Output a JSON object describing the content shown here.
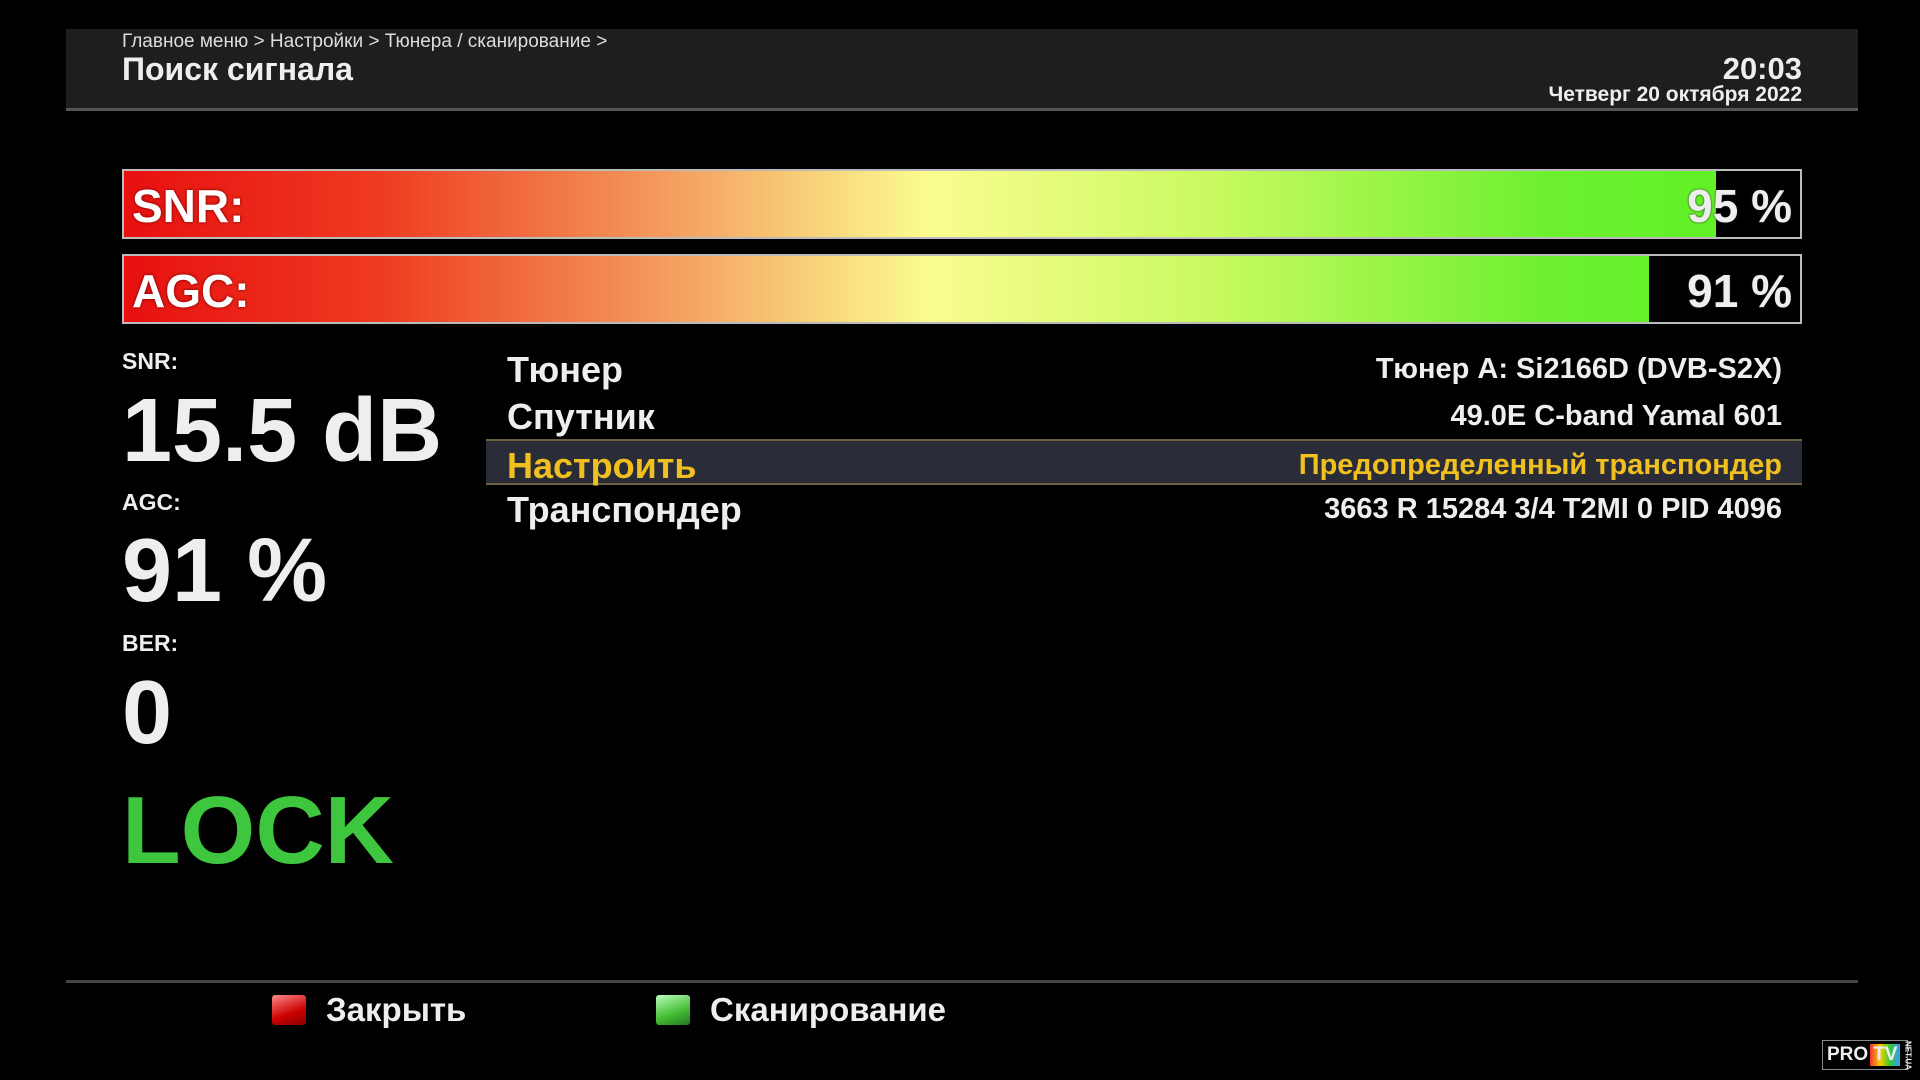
{
  "header": {
    "breadcrumb": "Главное меню > Настройки > Тюнера / сканирование >",
    "title": "Поиск сигнала",
    "time": "20:03",
    "date": "Четверг 20 октября 2022"
  },
  "bars": [
    {
      "label": "SNR:",
      "value": "95 %",
      "percent": 95
    },
    {
      "label": "AGC:",
      "value": "91 %",
      "percent": 91
    }
  ],
  "stats": {
    "snr_label": "SNR:",
    "snr_value": "15.5 dB",
    "agc_label": "AGC:",
    "agc_value": "91 %",
    "ber_label": "BER:",
    "ber_value": "0",
    "status": "LOCK",
    "status_color": "#3fc63f"
  },
  "info": [
    {
      "key": "Тюнер",
      "value": "Тюнер A: Si2166D (DVB-S2X)"
    },
    {
      "key": "Спутник",
      "value": "49.0E C-band Yamal 601"
    },
    {
      "key": "Настроить",
      "value": "Предопределенный транспондер",
      "selected": true
    },
    {
      "key": "Транспондер",
      "value": "3663 R 15284 3/4 T2MI 0 PID 4096"
    }
  ],
  "footer": {
    "red_label": "Закрыть",
    "green_label": "Сканирование"
  },
  "watermark": {
    "text": "PRO TV NET.UA"
  }
}
